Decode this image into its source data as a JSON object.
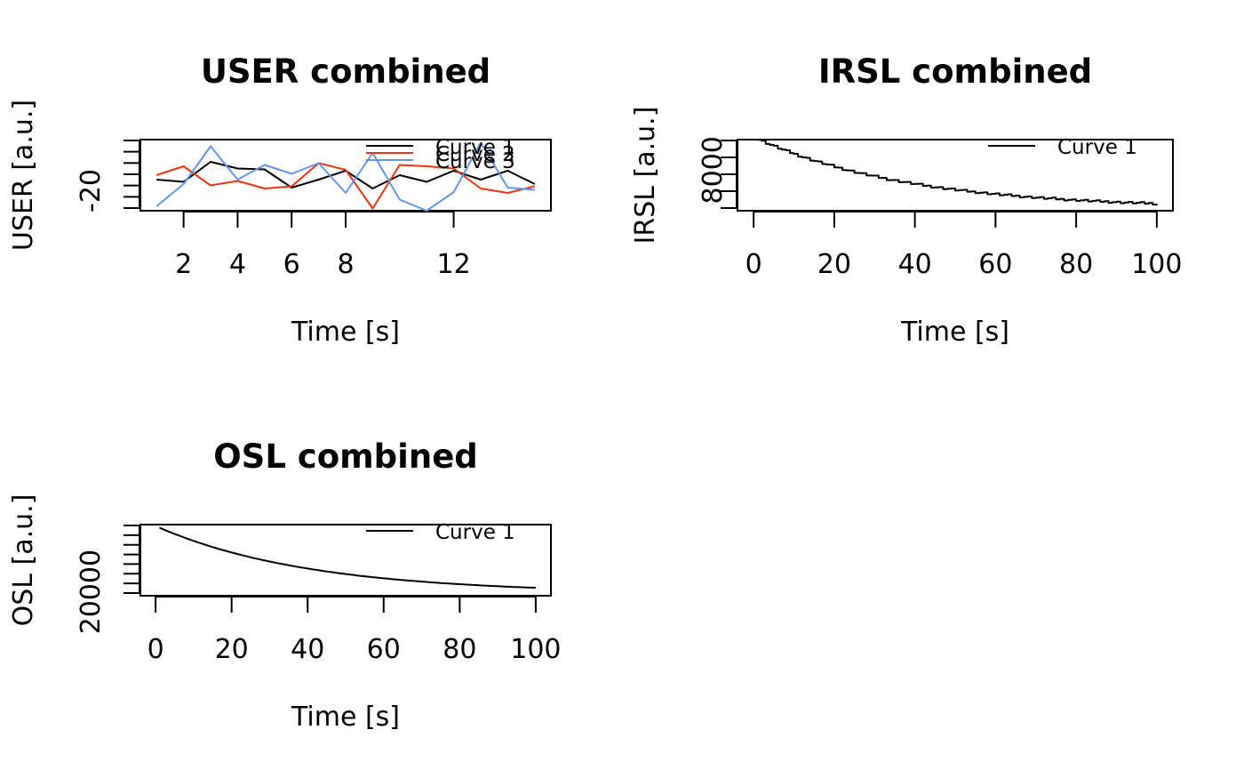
{
  "chart_data": [
    {
      "type": "line",
      "title": "USER combined",
      "xlabel": "Time [s]",
      "ylabel": "USER [a.u.]",
      "x": [
        1,
        2,
        3,
        4,
        5,
        6,
        7,
        8,
        9,
        10,
        11,
        12,
        13,
        14,
        15
      ],
      "xticks": [
        2,
        4,
        6,
        8,
        12
      ],
      "xlim": [
        0.4,
        15.6
      ],
      "yticks": [
        -20
      ],
      "ylim": [
        -24.5,
        -8.5
      ],
      "series": [
        {
          "name": "Curve 1",
          "color": "#000000",
          "values": [
            -17.5,
            -18,
            -13.5,
            -15,
            -15.2,
            -19.3,
            -17.5,
            -15.5,
            -19.5,
            -16.5,
            -18,
            -15.5,
            -17.5,
            -15.5,
            -18.5
          ]
        },
        {
          "name": "Curve 2",
          "color": "#ee3311",
          "values": [
            -16.5,
            -14.5,
            -18.8,
            -17.8,
            -19.5,
            -19,
            -13.8,
            -15.3,
            -24,
            -14.2,
            -14.5,
            -15,
            -19.5,
            -20.5,
            -19
          ]
        },
        {
          "name": "Curve 3",
          "color": "#6495ed",
          "values": [
            -23.5,
            -18.5,
            -10,
            -17.5,
            -14.2,
            -16.2,
            -13.8,
            -20.5,
            -11.5,
            -22,
            -24.5,
            -20.3,
            -9.2,
            -19.3,
            -19.8
          ]
        }
      ],
      "legend": [
        "Curve 1",
        "Curve 2",
        "Curve 3"
      ],
      "legend_position": "top-right"
    },
    {
      "type": "line",
      "title": "IRSL combined",
      "xlabel": "Time [s]",
      "ylabel": "IRSL [a.u.]",
      "xticks": [
        0,
        20,
        40,
        60,
        80,
        100
      ],
      "xlim": [
        -4,
        104
      ],
      "yticks": [
        8000
      ],
      "ylim": [
        7760,
        8180
      ],
      "series": [
        {
          "name": "Curve 1",
          "color": "#000000",
          "decay": {
            "x_start": 1,
            "x_end": 100,
            "y_start": 8180,
            "y_end": 7772,
            "rate": 0.0265,
            "steps": true
          }
        }
      ],
      "legend": [
        "Curve 1"
      ],
      "legend_position": "top-right"
    },
    {
      "type": "line",
      "title": "OSL combined",
      "xlabel": "Time [s]",
      "ylabel": "OSL [a.u.]",
      "xticks": [
        0,
        20,
        40,
        60,
        80,
        100
      ],
      "xlim": [
        -4,
        104
      ],
      "yticks": [
        20000
      ],
      "ylim": [
        19000,
        37500
      ],
      "series": [
        {
          "name": "Curve 1",
          "color": "#000000",
          "decay": {
            "x_start": 1,
            "x_end": 100,
            "y_start": 36700,
            "y_end": 19630,
            "rate": 0.025,
            "steps": false
          }
        }
      ],
      "legend": [
        "Curve 1"
      ],
      "legend_position": "top-right"
    }
  ]
}
